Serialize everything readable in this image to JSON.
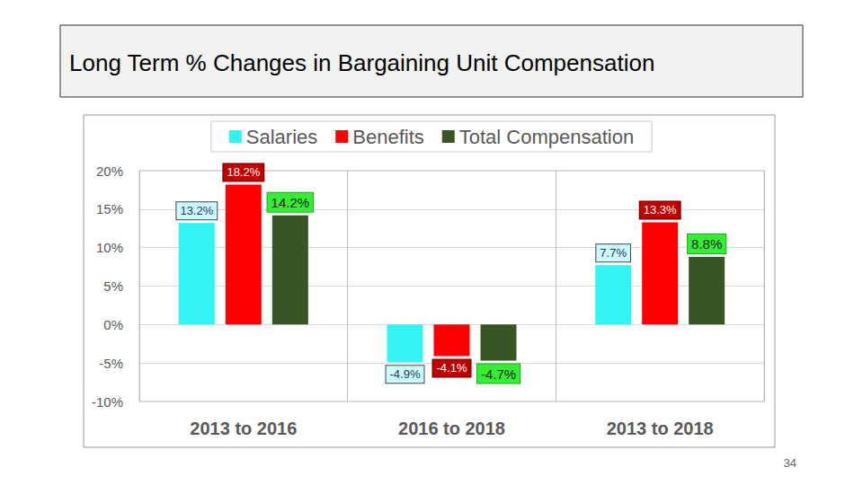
{
  "chart_data": {
    "type": "bar",
    "title": "Long Term % Changes in Bargaining Unit Compensation",
    "categories": [
      "2013 to 2016",
      "2016 to 2018",
      "2013 to 2018"
    ],
    "series": [
      {
        "name": "Salaries",
        "color": "#33f3f3",
        "values": [
          13.2,
          -4.9,
          7.7
        ],
        "value_labels": [
          "13.2%",
          "-4.9%",
          "7.7%"
        ]
      },
      {
        "name": "Benefits",
        "color": "#ff0000",
        "values": [
          18.2,
          -4.1,
          13.3
        ],
        "value_labels": [
          "18.2%",
          "-4.1%",
          "13.3%"
        ]
      },
      {
        "name": "Total Compensation",
        "color": "#375623",
        "values": [
          14.2,
          -4.7,
          8.8
        ],
        "value_labels": [
          "14.2%",
          "-4.7%",
          "8.8%"
        ]
      }
    ],
    "ylim": [
      -10,
      20
    ],
    "yticks": [
      {
        "value": -10,
        "label": "-10%"
      },
      {
        "value": -5,
        "label": "-5%"
      },
      {
        "value": 0,
        "label": "0%"
      },
      {
        "value": 5,
        "label": "5%"
      },
      {
        "value": 10,
        "label": "10%"
      },
      {
        "value": 15,
        "label": "15%"
      },
      {
        "value": 20,
        "label": "20%"
      }
    ],
    "grid": true,
    "legend": "top",
    "data_labels": true,
    "annotations": [
      "34"
    ]
  }
}
